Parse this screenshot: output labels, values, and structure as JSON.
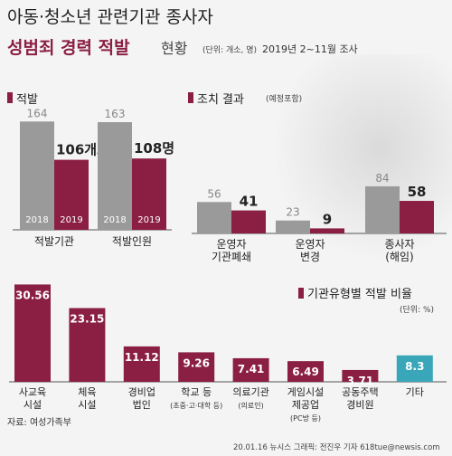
{
  "header": {
    "title_line1": "아동·청소년 관련기관 종사자",
    "title_bold": "성범죄 경력 적발",
    "title_tail": "현황",
    "unit_note": "(단위: 개소, 명)",
    "period": "2019년 2~11월 조사"
  },
  "sections": {
    "detection": "적발",
    "measures": "조치 결과",
    "measures_note": "(예정포함)",
    "by_type": "기관유형별 적발 비율",
    "by_type_unit": "(단위: %)"
  },
  "colors": {
    "y2018": "#9a9a9a",
    "y2019": "#8b1f43",
    "teal": "#3aa6b9"
  },
  "chart_data": [
    {
      "type": "bar",
      "title": "적발",
      "categories": [
        "적발기관",
        "적발인원"
      ],
      "series": [
        {
          "name": "2018",
          "values": [
            164,
            163
          ]
        },
        {
          "name": "2019",
          "values": [
            106,
            108
          ]
        }
      ],
      "value_labels_2018": [
        "164",
        "163"
      ],
      "value_labels_2019": [
        "106개소",
        "108명"
      ]
    },
    {
      "type": "bar",
      "title": "조치 결과",
      "categories": [
        "운영자 기관폐쇄",
        "운영자 변경",
        "종사자 (해임)"
      ],
      "category_lines": [
        [
          "운영자",
          "기관폐쇄"
        ],
        [
          "운영자",
          "변경"
        ],
        [
          "종사자",
          "(해임)"
        ]
      ],
      "series": [
        {
          "values": [
            56,
            23,
            84
          ]
        },
        {
          "values": [
            41,
            9,
            58
          ]
        }
      ],
      "ylim": [
        0,
        100
      ]
    },
    {
      "type": "bar",
      "title": "기관유형별 적발 비율",
      "categories": [
        "사교육 시설",
        "체육 시설",
        "경비업 법인",
        "학교 등",
        "의료기관",
        "게임시설 제공업",
        "공동주택 경비원",
        "기타"
      ],
      "category_lines": [
        [
          "사교육",
          "시설"
        ],
        [
          "체육",
          "시설"
        ],
        [
          "경비업",
          "법인"
        ],
        [
          "학교 등"
        ],
        [
          "의료기관"
        ],
        [
          "게임시설",
          "제공업"
        ],
        [
          "공동주택",
          "경비원"
        ],
        [
          "기타"
        ]
      ],
      "sub_notes": [
        "",
        "",
        "",
        "(초중·고·대학 등)",
        "(의료인)",
        "(PC방 등)",
        "",
        ""
      ],
      "values": [
        30.56,
        23.15,
        11.12,
        9.26,
        7.41,
        6.49,
        3.71,
        8.3
      ],
      "value_labels": [
        "30.56",
        "23.15",
        "11.12",
        "9.26",
        "7.41",
        "6.49",
        "3.71",
        "8.3"
      ],
      "ylabel": "%"
    }
  ],
  "footer": {
    "source": "자료: 여성가족부",
    "credit": "20.01.16 뉴시스 그래픽: 전진우 기자 618tue@newsis.com"
  }
}
